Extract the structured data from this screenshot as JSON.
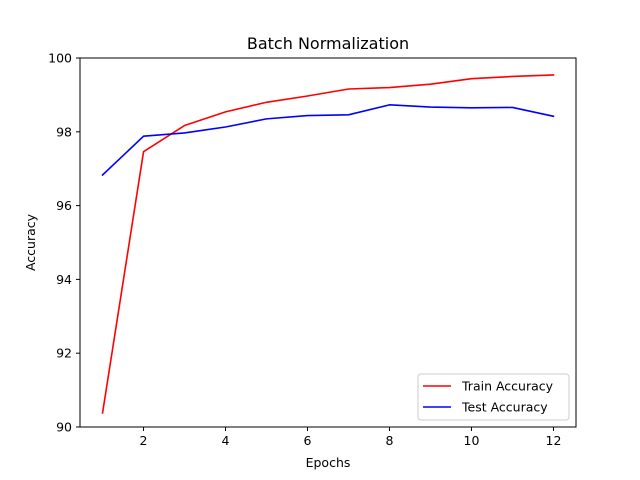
{
  "chart_data": {
    "type": "line",
    "title": "Batch Normalization",
    "xlabel": "Epochs",
    "ylabel": "Accuracy",
    "xlim": [
      0.45,
      12.55
    ],
    "ylim": [
      90,
      100
    ],
    "xticks": [
      2,
      4,
      6,
      8,
      10,
      12
    ],
    "yticks": [
      90,
      92,
      94,
      96,
      98,
      100
    ],
    "grid": false,
    "legend_position": "lower-right",
    "x": [
      1,
      2,
      3,
      4,
      5,
      6,
      7,
      8,
      9,
      10,
      11,
      12
    ],
    "series": [
      {
        "name": "Train Accuracy",
        "color": "#ff0000",
        "values": [
          90.38,
          97.46,
          98.17,
          98.54,
          98.8,
          98.97,
          99.16,
          99.2,
          99.29,
          99.44,
          99.5,
          99.54
        ]
      },
      {
        "name": "Test Accuracy",
        "color": "#0000ff",
        "values": [
          96.83,
          97.88,
          97.97,
          98.13,
          98.35,
          98.44,
          98.46,
          98.73,
          98.67,
          98.65,
          98.66,
          98.42
        ]
      }
    ]
  }
}
